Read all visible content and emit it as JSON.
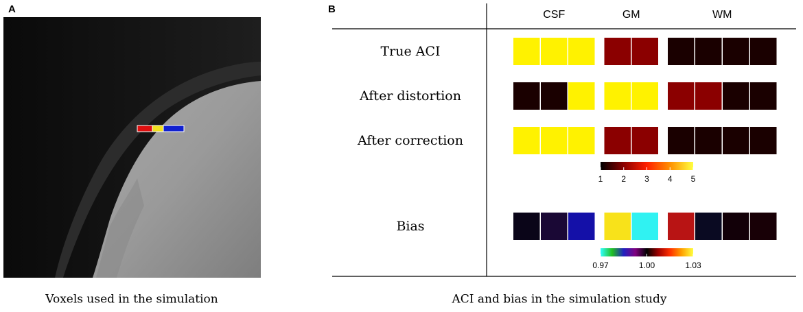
{
  "panels": {
    "a": {
      "label": "A",
      "caption": "Voxels used in the simulation"
    },
    "b": {
      "label": "B",
      "caption": "ACI and bias in the simulation study",
      "groups": [
        {
          "name": "CSF",
          "count": 3
        },
        {
          "name": "GM",
          "count": 2
        },
        {
          "name": "WM",
          "count": 4
        }
      ],
      "rows": [
        {
          "label": "True ACI",
          "colors": [
            "#fff200",
            "#fff200",
            "#fff200",
            "#8b0000",
            "#8b0000",
            "#1a0000",
            "#1a0000",
            "#1a0000",
            "#1a0000"
          ]
        },
        {
          "label": "After distortion",
          "colors": [
            "#1a0000",
            "#1a0000",
            "#fff200",
            "#fff200",
            "#fff200",
            "#8b0000",
            "#8b0000",
            "#1a0000",
            "#1a0000"
          ]
        },
        {
          "label": "After correction",
          "colors": [
            "#fff200",
            "#fff200",
            "#fff200",
            "#8b0000",
            "#8b0000",
            "#1a0000",
            "#1a0000",
            "#1a0000",
            "#1a0000"
          ]
        },
        {
          "label": "Bias",
          "colors": [
            "#0a0518",
            "#1a0835",
            "#1410a8",
            "#f8e21a",
            "#30f2f2",
            "#b81414",
            "#0a0a22",
            "#120008",
            "#180006"
          ]
        }
      ],
      "colorbars": [
        {
          "lim": [
            1,
            5
          ],
          "ticks": [
            1,
            2,
            3,
            4,
            5
          ],
          "colors": [
            "#000000",
            "#8b0000",
            "#ff2000",
            "#ff9000",
            "#ffff40"
          ]
        },
        {
          "lim": [
            0.97,
            1.03
          ],
          "ticks": [
            {
              "value": 0.97,
              "label": "0.97"
            },
            {
              "value": 1,
              "label": "1.00"
            },
            {
              "value": 1.03,
              "label": "1.03"
            }
          ],
          "colors": [
            "#30ffff",
            "#20c020",
            "#2020c0",
            "#800080",
            "#000000",
            "#a00000",
            "#ff3000",
            "#ffa000",
            "#ffff40"
          ]
        }
      ]
    }
  }
}
